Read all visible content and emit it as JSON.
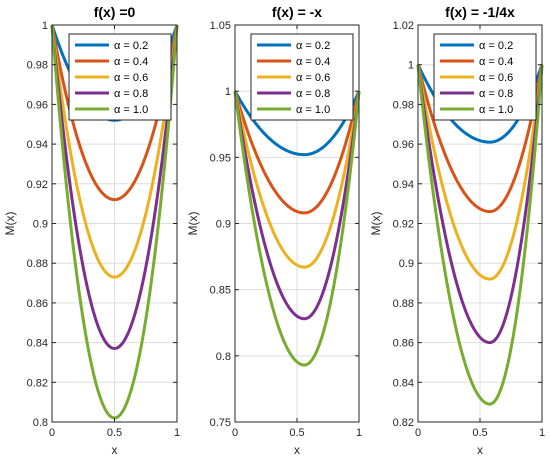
{
  "chart_data": [
    {
      "type": "line",
      "title": "f(x) =0",
      "xlabel": "x",
      "ylabel": "M(x)",
      "xlim": [
        0,
        1
      ],
      "ylim": [
        0.8,
        1.0
      ],
      "xticks": [
        "0",
        "0.5",
        "1"
      ],
      "yticks": [
        "0.8",
        "0.82",
        "0.84",
        "0.86",
        "0.88",
        "0.9",
        "0.92",
        "0.94",
        "0.96",
        "0.98",
        "1"
      ],
      "grid": true,
      "legend_position": "top-right",
      "series": [
        {
          "name": "α = 0.2",
          "color": "#0072BD",
          "x_min": 0.5,
          "y_min": 0.952
        },
        {
          "name": "α = 0.4",
          "color": "#D95319",
          "x_min": 0.5,
          "y_min": 0.912
        },
        {
          "name": "α = 0.6",
          "color": "#EDB120",
          "x_min": 0.5,
          "y_min": 0.873
        },
        {
          "name": "α = 0.8",
          "color": "#7E2F8E",
          "x_min": 0.5,
          "y_min": 0.837
        },
        {
          "name": "α = 1.0",
          "color": "#77AC30",
          "x_min": 0.5,
          "y_min": 0.802
        }
      ]
    },
    {
      "type": "line",
      "title": "f(x) = -x",
      "xlabel": "x",
      "ylabel": "M(x)",
      "xlim": [
        0,
        1
      ],
      "ylim": [
        0.75,
        1.05
      ],
      "xticks": [
        "0",
        "0.5",
        "1"
      ],
      "yticks": [
        "0.75",
        "0.8",
        "0.85",
        "0.9",
        "0.95",
        "1",
        "1.05"
      ],
      "grid": true,
      "legend_position": "top-right",
      "series": [
        {
          "name": "α = 0.2",
          "color": "#0072BD",
          "x_min": 0.56,
          "y_min": 0.952
        },
        {
          "name": "α = 0.4",
          "color": "#D95319",
          "x_min": 0.56,
          "y_min": 0.908
        },
        {
          "name": "α = 0.6",
          "color": "#EDB120",
          "x_min": 0.56,
          "y_min": 0.867
        },
        {
          "name": "α = 0.8",
          "color": "#7E2F8E",
          "x_min": 0.56,
          "y_min": 0.828
        },
        {
          "name": "α = 1.0",
          "color": "#77AC30",
          "x_min": 0.56,
          "y_min": 0.793
        }
      ]
    },
    {
      "type": "line",
      "title": "f(x) = -1/4x",
      "xlabel": "x",
      "ylabel": "M(x)",
      "xlim": [
        0,
        1
      ],
      "ylim": [
        0.82,
        1.02
      ],
      "xticks": [
        "0",
        "0.5",
        "1"
      ],
      "yticks": [
        "0.82",
        "0.84",
        "0.86",
        "0.88",
        "0.9",
        "0.92",
        "0.94",
        "0.96",
        "0.98",
        "1",
        "1.02"
      ],
      "grid": true,
      "legend_position": "top-right",
      "series": [
        {
          "name": "α = 0.2",
          "color": "#0072BD",
          "x_min": 0.58,
          "y_min": 0.961
        },
        {
          "name": "α = 0.4",
          "color": "#D95319",
          "x_min": 0.58,
          "y_min": 0.926
        },
        {
          "name": "α = 0.6",
          "color": "#EDB120",
          "x_min": 0.58,
          "y_min": 0.892
        },
        {
          "name": "α = 0.8",
          "color": "#7E2F8E",
          "x_min": 0.58,
          "y_min": 0.86
        },
        {
          "name": "α = 1.0",
          "color": "#77AC30",
          "x_min": 0.58,
          "y_min": 0.829
        }
      ]
    }
  ]
}
